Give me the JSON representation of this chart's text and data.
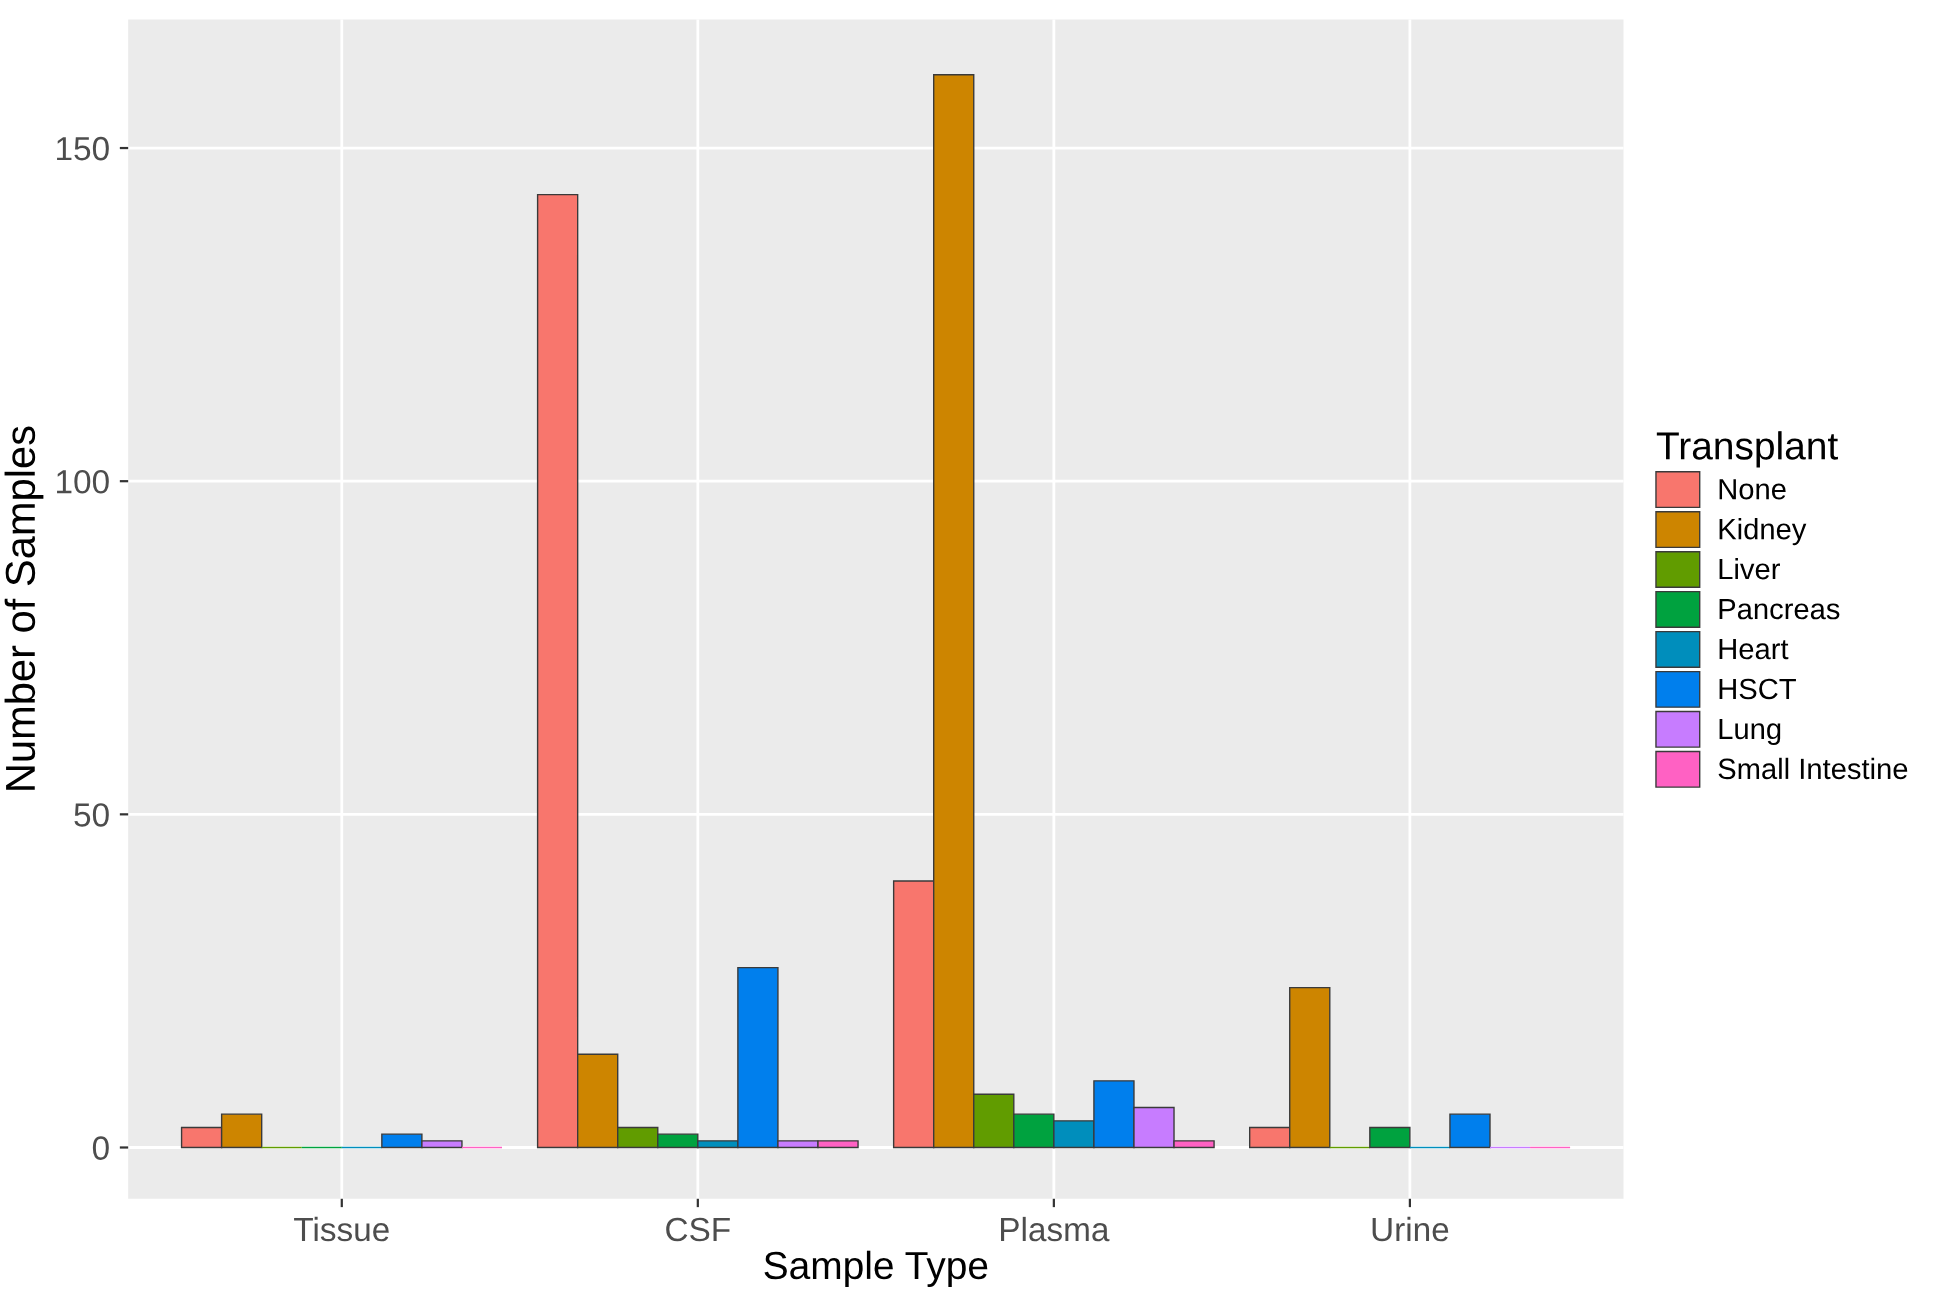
{
  "chart_data": {
    "type": "bar",
    "xlabel": "Sample Type",
    "ylabel": "Number of Samples",
    "legend_title": "Transplant",
    "categories": [
      "Tissue",
      "CSF",
      "Plasma",
      "Urine"
    ],
    "series": [
      {
        "name": "None",
        "color": "#f8766d",
        "values": [
          3,
          143,
          40,
          3
        ]
      },
      {
        "name": "Kidney",
        "color": "#cd8500",
        "values": [
          5,
          14,
          161,
          24
        ]
      },
      {
        "name": "Liver",
        "color": "#619c00",
        "values": [
          0,
          3,
          8,
          0
        ]
      },
      {
        "name": "Pancreas",
        "color": "#00a23f",
        "values": [
          0,
          2,
          5,
          3
        ]
      },
      {
        "name": "Heart",
        "color": "#008ebc",
        "values": [
          0,
          1,
          4,
          0
        ]
      },
      {
        "name": "HSCT",
        "color": "#007fed",
        "values": [
          2,
          27,
          10,
          5
        ]
      },
      {
        "name": "Lung",
        "color": "#c77cff",
        "values": [
          1,
          1,
          6,
          0
        ]
      },
      {
        "name": "Small Intestine",
        "color": "#ff61c3",
        "values": [
          0,
          1,
          1,
          0
        ]
      }
    ],
    "ylim": [
      -7.7,
      169.3
    ],
    "yticks": [
      0,
      50,
      100,
      150
    ],
    "grid": true,
    "legend": "right"
  }
}
